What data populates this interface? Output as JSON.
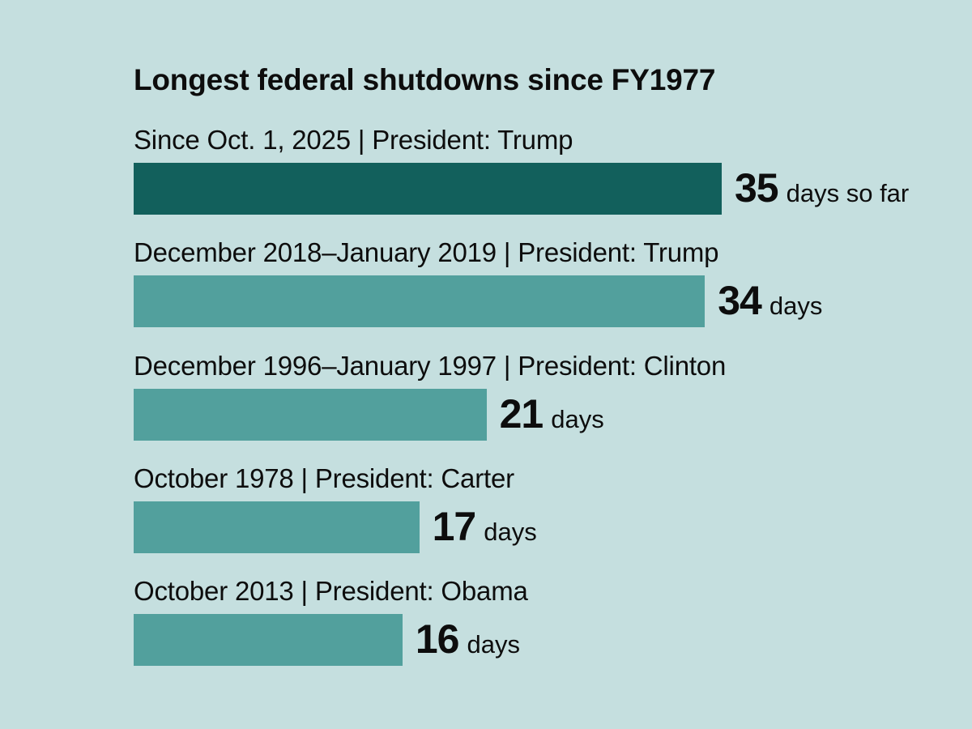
{
  "chart_data": {
    "type": "bar",
    "orientation": "horizontal",
    "title": "Longest federal shutdowns since FY1977",
    "xlabel": "",
    "ylabel": "",
    "unit": "days",
    "grid": false,
    "categories": [
      "Since Oct. 1, 2025  |  President: Trump",
      "December 2018–January 2019  |  President: Trump",
      "December 1996–January 1997  |  President: Clinton",
      "October 1978  |  President: Carter",
      "October 2013  |  President: Obama"
    ],
    "values": [
      35,
      34,
      21,
      17,
      16
    ],
    "value_suffixes": [
      "days so far",
      "days",
      "days",
      "days",
      "days"
    ],
    "highlight_index": 0,
    "colors": {
      "highlight": "#12605c",
      "default": "#52a09d",
      "background": "#c5dfdf",
      "text": "#0d0d0d"
    },
    "xlim": [
      0,
      35
    ]
  }
}
